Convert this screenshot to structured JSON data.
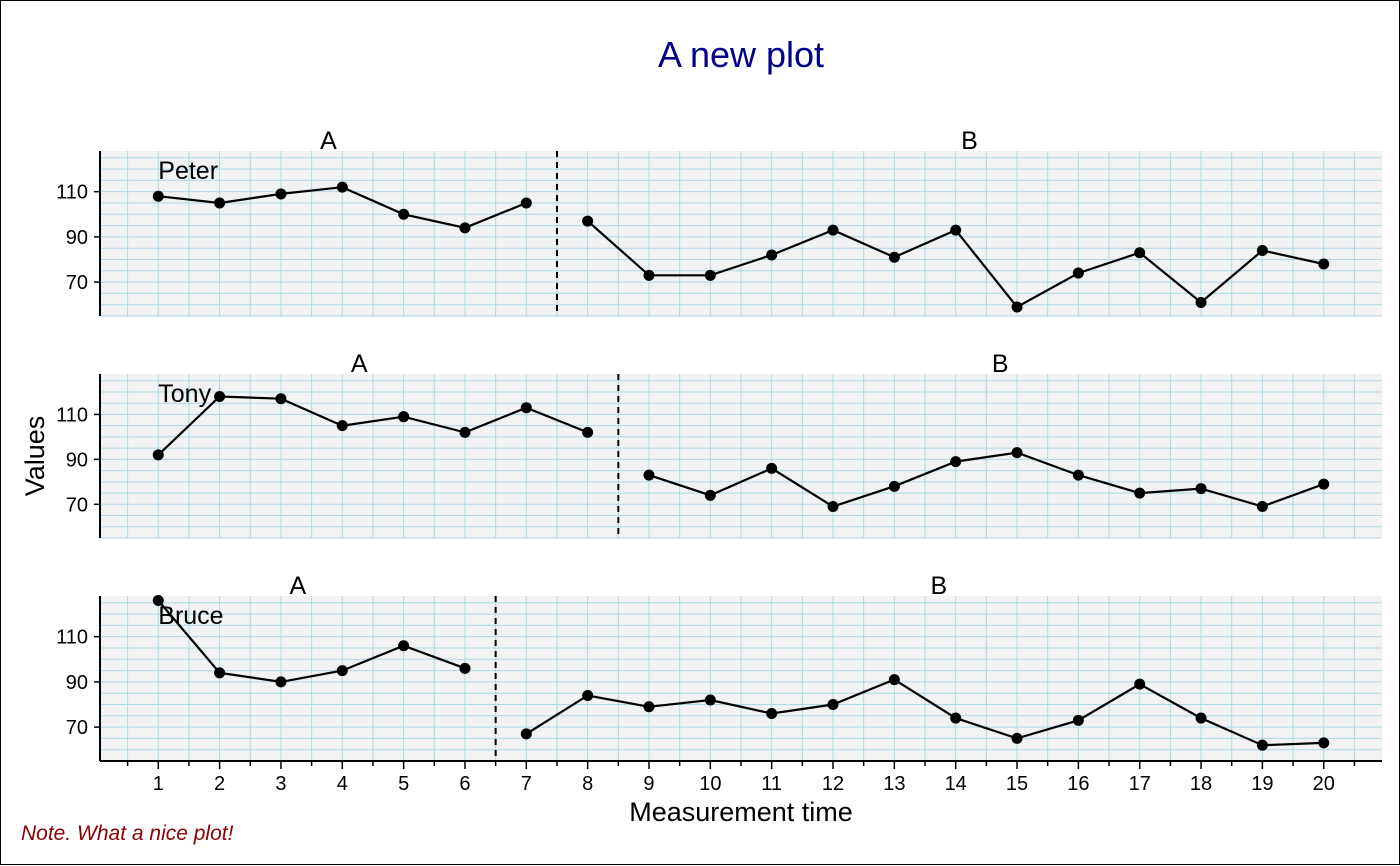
{
  "chart_data": {
    "type": "line",
    "title": "A new plot",
    "xlabel": "Measurement time",
    "ylabel": "Values",
    "note": "Note. What a nice plot!",
    "x_ticks": [
      1,
      2,
      3,
      4,
      5,
      6,
      7,
      8,
      9,
      10,
      11,
      12,
      13,
      14,
      15,
      16,
      17,
      18,
      19,
      20
    ],
    "xlim": [
      0.05,
      20.95
    ],
    "ylim": [
      55,
      128
    ],
    "y_ticks": [
      70,
      90,
      110
    ],
    "grid": true,
    "colors": {
      "title": "#00008b",
      "note": "#8b0000",
      "panel_background": "#f2f2f2",
      "grid": "#add8e6",
      "series": "#000000"
    },
    "cases": [
      {
        "name": "Peter",
        "phases": [
          {
            "label": "A",
            "x": [
              1,
              2,
              3,
              4,
              5,
              6,
              7
            ],
            "values": [
              108,
              105,
              109,
              112,
              100,
              94,
              105
            ]
          },
          {
            "label": "B",
            "x": [
              8,
              9,
              10,
              11,
              12,
              13,
              14,
              15,
              16,
              17,
              18,
              19,
              20
            ],
            "values": [
              97,
              73,
              73,
              82,
              93,
              81,
              93,
              59,
              74,
              83,
              61,
              84,
              78
            ]
          }
        ]
      },
      {
        "name": "Tony",
        "phases": [
          {
            "label": "A",
            "x": [
              1,
              2,
              3,
              4,
              5,
              6,
              7,
              8
            ],
            "values": [
              92,
              118,
              117,
              105,
              109,
              102,
              113,
              102
            ]
          },
          {
            "label": "B",
            "x": [
              9,
              10,
              11,
              12,
              13,
              14,
              15,
              16,
              17,
              18,
              19,
              20
            ],
            "values": [
              83,
              74,
              86,
              69,
              78,
              89,
              93,
              83,
              75,
              77,
              69,
              79
            ]
          }
        ]
      },
      {
        "name": "Bruce",
        "phases": [
          {
            "label": "A",
            "x": [
              1,
              2,
              3,
              4,
              5,
              6
            ],
            "values": [
              126,
              94,
              90,
              95,
              106,
              96
            ]
          },
          {
            "label": "B",
            "x": [
              7,
              8,
              9,
              10,
              11,
              12,
              13,
              14,
              15,
              16,
              17,
              18,
              19,
              20
            ],
            "values": [
              67,
              84,
              79,
              82,
              76,
              80,
              91,
              74,
              65,
              73,
              89,
              74,
              62,
              63
            ]
          }
        ]
      }
    ]
  }
}
